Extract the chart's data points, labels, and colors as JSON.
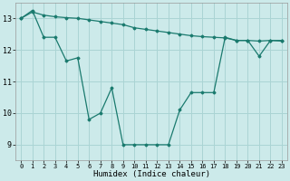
{
  "xlabel": "Humidex (Indice chaleur)",
  "background_color": "#cceaea",
  "grid_color": "#aad4d4",
  "line_color": "#1a7a6e",
  "xlim": [
    -0.5,
    23.5
  ],
  "ylim": [
    8.5,
    13.5
  ],
  "yticks": [
    9,
    10,
    11,
    12,
    13
  ],
  "xticks": [
    0,
    1,
    2,
    3,
    4,
    5,
    6,
    7,
    8,
    9,
    10,
    11,
    12,
    13,
    14,
    15,
    16,
    17,
    18,
    19,
    20,
    21,
    22,
    23
  ],
  "series1_x": [
    0,
    1,
    2,
    3,
    4,
    5,
    6,
    7,
    8,
    9,
    10,
    11,
    12,
    13,
    14,
    15,
    16,
    17,
    18,
    19,
    20,
    21,
    22,
    23
  ],
  "series1_y": [
    13.0,
    13.2,
    13.1,
    13.05,
    13.02,
    13.0,
    12.95,
    12.9,
    12.85,
    12.8,
    12.7,
    12.65,
    12.6,
    12.55,
    12.5,
    12.45,
    12.42,
    12.4,
    12.38,
    12.3,
    12.3,
    12.28,
    12.3,
    12.28
  ],
  "series2_x": [
    0,
    1,
    2,
    3,
    4,
    5,
    6,
    7,
    8,
    9,
    10,
    11,
    12,
    13,
    14,
    15,
    16,
    17,
    18,
    19,
    20,
    21,
    22,
    23
  ],
  "series2_y": [
    13.0,
    13.25,
    12.4,
    12.4,
    11.65,
    11.75,
    9.8,
    10.0,
    10.8,
    9.0,
    9.0,
    9.0,
    9.0,
    9.0,
    10.1,
    10.65,
    10.65,
    10.65,
    12.4,
    12.3,
    12.3,
    11.8,
    12.3,
    12.3
  ]
}
